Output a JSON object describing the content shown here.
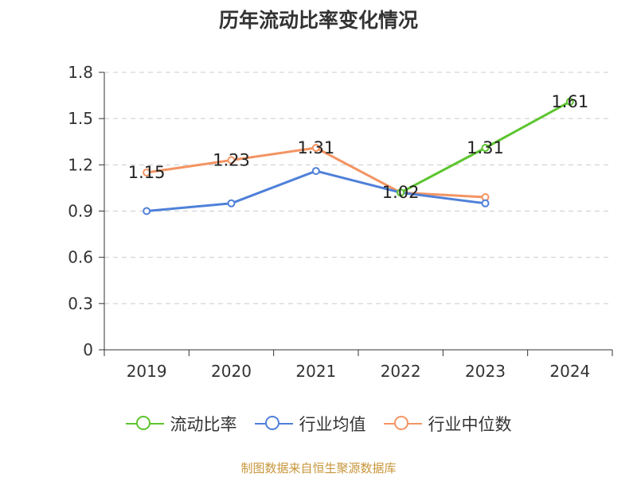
{
  "chart_data": {
    "type": "line",
    "title": "历年流动比率变化情况",
    "categories": [
      "2019",
      "2020",
      "2021",
      "2022",
      "2023",
      "2024"
    ],
    "ylim": [
      0,
      1.8
    ],
    "yticks": [
      "0",
      "0.3",
      "0.6",
      "0.9",
      "1.2",
      "1.5",
      "1.8"
    ],
    "grid": "horizontal-dashed",
    "legend_position": "bottom",
    "series": [
      {
        "name": "流动比率",
        "color": "#5cc52e",
        "values": [
          null,
          null,
          null,
          1.02,
          1.31,
          1.61
        ],
        "show_labels": true
      },
      {
        "name": "行业均值",
        "color": "#4f80d9",
        "values": [
          0.9,
          0.95,
          1.16,
          1.02,
          0.95,
          null
        ],
        "show_labels": false
      },
      {
        "name": "行业中位数",
        "color": "#f39462",
        "values": [
          1.15,
          1.23,
          1.31,
          1.02,
          0.99,
          null
        ],
        "show_labels": false
      }
    ],
    "data_labels": [
      {
        "category": "2019",
        "text": "1.15",
        "value": 1.15
      },
      {
        "category": "2020",
        "text": "1.23",
        "value": 1.23
      },
      {
        "category": "2021",
        "text": "1.31",
        "value": 1.31
      },
      {
        "category": "2022",
        "text": "1.02",
        "value": 1.02
      },
      {
        "category": "2023",
        "text": "1.31",
        "value": 1.31
      },
      {
        "category": "2024",
        "text": "1.61",
        "value": 1.61
      }
    ]
  },
  "source": "制图数据来自恒生聚源数据库"
}
